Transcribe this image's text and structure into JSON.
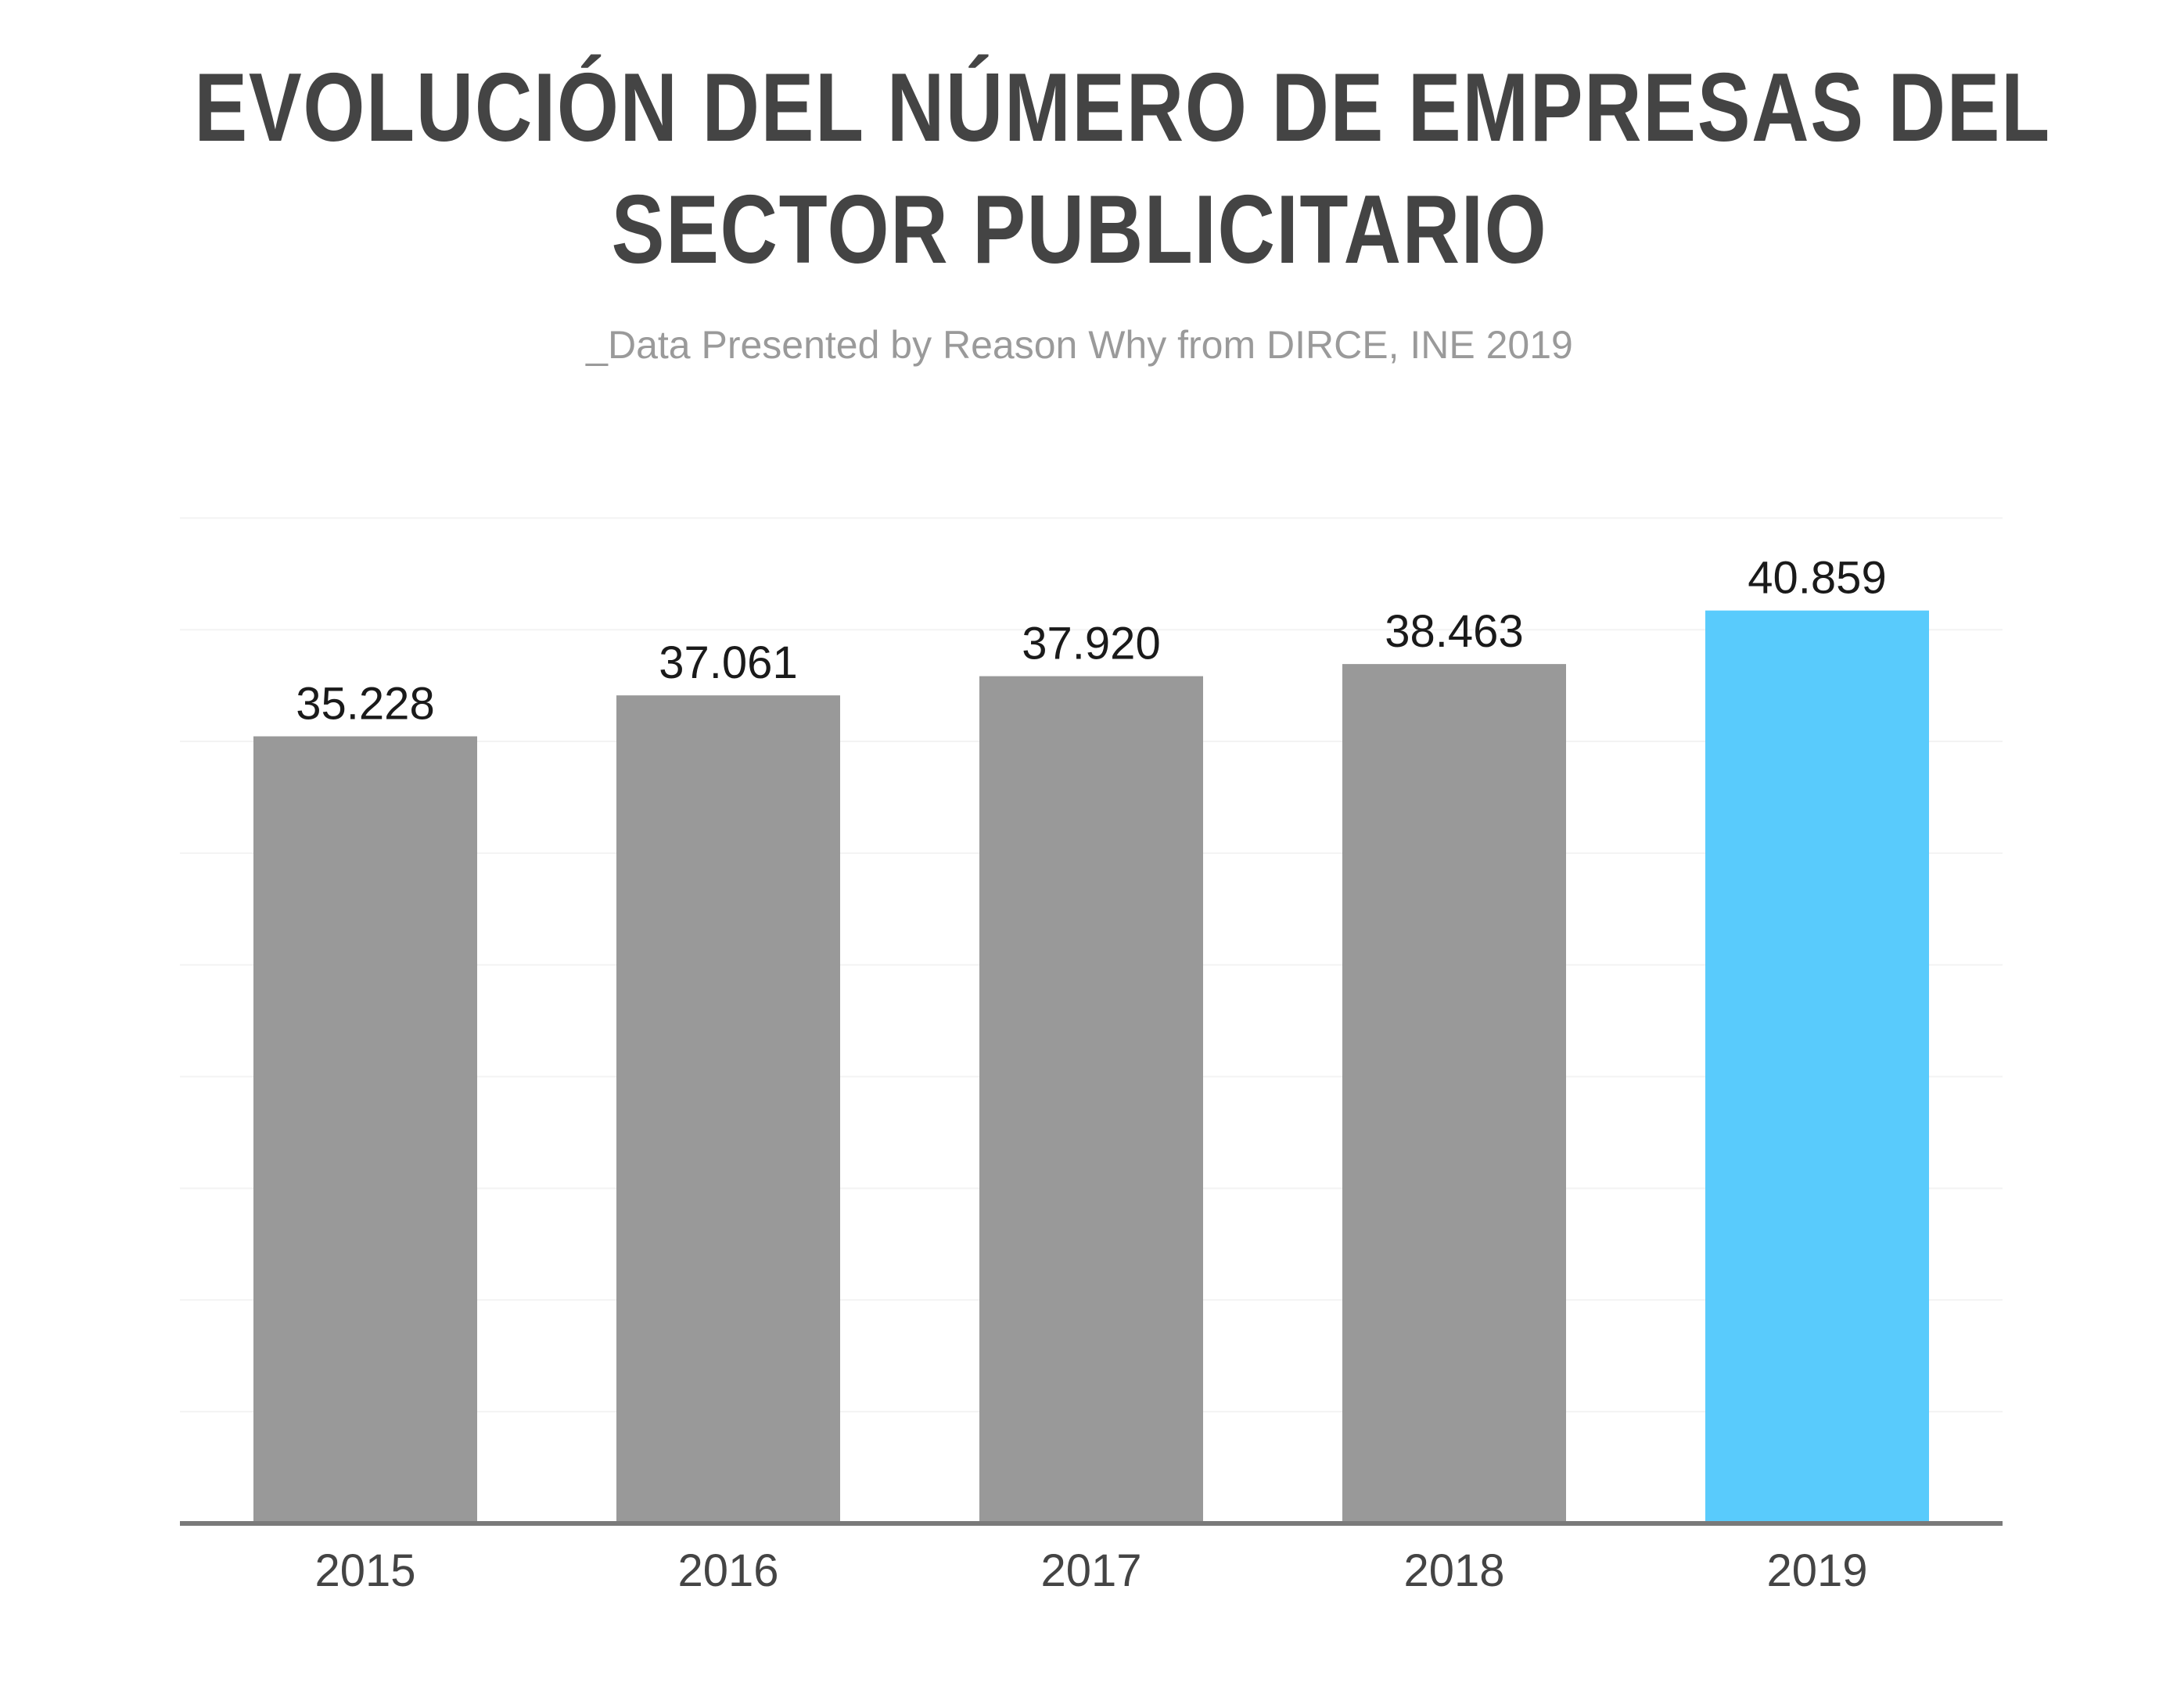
{
  "header": {
    "title_line1": "EVOLUCIÓN DEL NÚMERO DE EMPRESAS DEL",
    "title_line2": "SECTOR PUBLICITARIO",
    "subtitle": "_Data Presented by Reason Why from DIRCE, INE 2019"
  },
  "colors": {
    "bar_default": "#999999",
    "bar_highlight": "#59cbfc",
    "title": "#444444",
    "subtitle": "#9a9a9a",
    "gridline": "#f3f3f3",
    "axis": "#7a7a7a"
  },
  "chart_data": {
    "type": "bar",
    "title": "EVOLUCIÓN DEL NÚMERO DE EMPRESAS DEL SECTOR PUBLICITARIO",
    "subtitle": "_Data Presented by Reason Why from DIRCE, INE 2019",
    "xlabel": "",
    "ylabel": "",
    "categories": [
      "2015",
      "2016",
      "2017",
      "2018",
      "2019"
    ],
    "values": [
      35228,
      37061,
      37920,
      38463,
      40859
    ],
    "value_labels": [
      "35.228",
      "37.061",
      "37.920",
      "38.463",
      "40.859"
    ],
    "highlight": "2019",
    "ylim": [
      0,
      45000
    ],
    "grid": true,
    "legend": "none"
  }
}
